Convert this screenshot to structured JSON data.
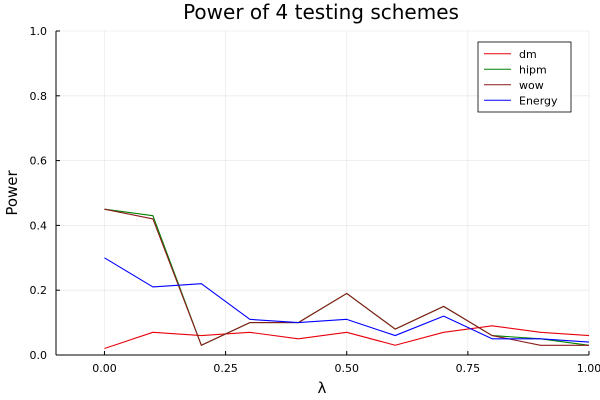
{
  "chart_data": {
    "type": "line",
    "title": "Power of 4 testing schemes",
    "xlabel": "λ",
    "ylabel": "Power",
    "xlim": [
      -0.1,
      1.0
    ],
    "ylim": [
      0,
      1
    ],
    "x_ticks": [
      0.0,
      0.25,
      0.5,
      0.75,
      1.0
    ],
    "x_tick_labels": [
      "0.00",
      "0.25",
      "0.50",
      "0.75",
      "1.00"
    ],
    "y_ticks": [
      0.0,
      0.2,
      0.4,
      0.6,
      0.8,
      1.0
    ],
    "y_tick_labels": [
      "0.0",
      "0.2",
      "0.4",
      "0.6",
      "0.8",
      "1.0"
    ],
    "grid": true,
    "legend_position": "top-right",
    "x": [
      0.0,
      0.1,
      0.2,
      0.3,
      0.4,
      0.5,
      0.6,
      0.7,
      0.8,
      0.9,
      1.0
    ],
    "series": [
      {
        "name": "dm",
        "color": "#e8000b",
        "values": [
          0.02,
          0.07,
          0.06,
          0.07,
          0.05,
          0.07,
          0.03,
          0.07,
          0.09,
          0.07,
          0.06
        ]
      },
      {
        "name": "hipm",
        "color": "#008000",
        "values": [
          0.45,
          0.43,
          0.03,
          0.1,
          0.1,
          0.19,
          0.08,
          0.15,
          0.06,
          0.05,
          0.03
        ]
      },
      {
        "name": "wow",
        "color": "#8b1a1a",
        "values": [
          0.45,
          0.42,
          0.03,
          0.1,
          0.1,
          0.19,
          0.08,
          0.15,
          0.06,
          0.03,
          0.03
        ]
      },
      {
        "name": "Energy",
        "color": "#0000ff",
        "values": [
          0.3,
          0.21,
          0.22,
          0.11,
          0.1,
          0.11,
          0.06,
          0.12,
          0.05,
          0.05,
          0.04
        ]
      }
    ]
  }
}
